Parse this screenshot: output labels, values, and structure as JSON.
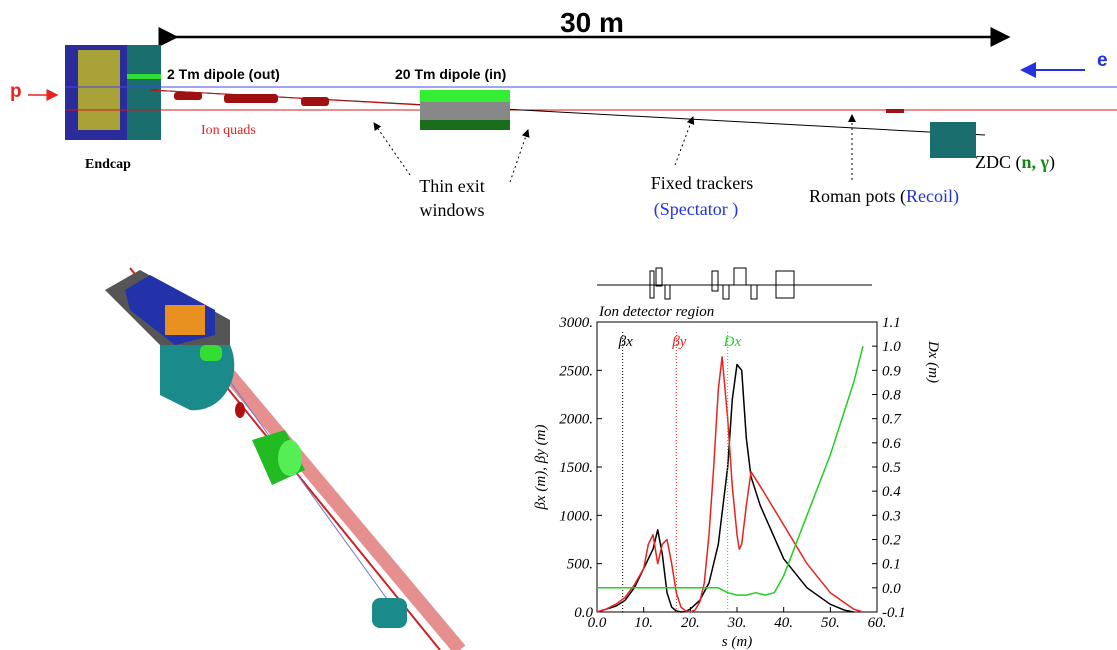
{
  "diagram": {
    "length": "30 m",
    "proton": "p",
    "electron": "e",
    "dipole_out": "2 Tm dipole (out)",
    "dipole_in": "20 Tm dipole (in)",
    "ion_quads": "Ion quads",
    "endcap": "Endcap",
    "thin_exit": [
      "Thin exit",
      "windows"
    ],
    "fixed_trackers": "Fixed trackers",
    "spectator": [
      "(",
      "Spectator",
      " )"
    ],
    "roman_pots": [
      "Roman pots (",
      "Recoil",
      ")"
    ],
    "zdc": [
      "ZDC (",
      "n, γ",
      ")"
    ]
  },
  "chart_data": {
    "type": "line",
    "annotation": "Ion detector region",
    "xlabel": "s (m)",
    "ylabel": "βx (m), βy (m)",
    "y2label": "Dx (m)",
    "xlim": [
      0,
      60
    ],
    "xticks": [
      {
        "value": 0,
        "label": "0.0"
      },
      {
        "value": 10,
        "label": "10."
      },
      {
        "value": 20,
        "label": "20."
      },
      {
        "value": 30,
        "label": "30."
      },
      {
        "value": 40,
        "label": "40."
      },
      {
        "value": 50,
        "label": "50."
      },
      {
        "value": 60,
        "label": "60."
      }
    ],
    "ylim": [
      0,
      3000
    ],
    "yticks": [
      {
        "value": 0,
        "label": "0.0"
      },
      {
        "value": 500,
        "label": "500."
      },
      {
        "value": 1000,
        "label": "1000."
      },
      {
        "value": 1500,
        "label": "1500."
      },
      {
        "value": 2000,
        "label": "2000."
      },
      {
        "value": 2500,
        "label": "2500."
      },
      {
        "value": 3000,
        "label": "3000."
      }
    ],
    "y2lim": [
      -0.1,
      1.1
    ],
    "y2ticks": [
      -0.1,
      {
        "value": 0,
        "label": "0.0"
      },
      0.1,
      0.2,
      0.3,
      0.4,
      0.5,
      0.6,
      0.7,
      0.8,
      0.9,
      {
        "value": 1,
        "label": "1.0"
      },
      1.1
    ],
    "vlines": [
      5.5,
      17,
      28
    ],
    "series": [
      {
        "name": "βx",
        "color": "#000000",
        "x": [
          0,
          2,
          4,
          6,
          8,
          10,
          12,
          13,
          14,
          15,
          16,
          17,
          18,
          19,
          20,
          22,
          24,
          26,
          28,
          29,
          30,
          31,
          32,
          33,
          35,
          40,
          45,
          50,
          53,
          55
        ],
        "values": [
          0,
          30,
          60,
          120,
          250,
          450,
          650,
          850,
          600,
          200,
          50,
          10,
          0,
          5,
          30,
          120,
          300,
          700,
          1500,
          2200,
          2560,
          2500,
          1800,
          1400,
          1100,
          550,
          250,
          80,
          20,
          0
        ]
      },
      {
        "name": "βy",
        "color": "#e8231f",
        "x": [
          0,
          2,
          4,
          6,
          8,
          10,
          11,
          12,
          13,
          14,
          15,
          16,
          17,
          18,
          19,
          20,
          21,
          22,
          23,
          24,
          25,
          26,
          26.8,
          28,
          29,
          30,
          30.5,
          31,
          32,
          33,
          35,
          40,
          45,
          50,
          55,
          57
        ],
        "values": [
          0,
          30,
          80,
          150,
          280,
          450,
          700,
          800,
          500,
          700,
          750,
          500,
          200,
          50,
          10,
          0,
          20,
          100,
          300,
          800,
          1500,
          2300,
          2640,
          2000,
          1300,
          800,
          650,
          700,
          1100,
          1450,
          1300,
          900,
          500,
          200,
          30,
          0
        ]
      },
      {
        "name": "Dx",
        "color": "#22d022",
        "axis": "y2",
        "x": [
          0,
          10,
          20,
          26,
          28,
          30,
          32,
          34,
          36,
          38,
          40,
          45,
          50,
          55,
          57
        ],
        "values": [
          0,
          0,
          0,
          0,
          -0.02,
          -0.03,
          -0.03,
          -0.02,
          -0.03,
          -0.02,
          0.05,
          0.3,
          0.55,
          0.85,
          1.0
        ]
      }
    ]
  }
}
